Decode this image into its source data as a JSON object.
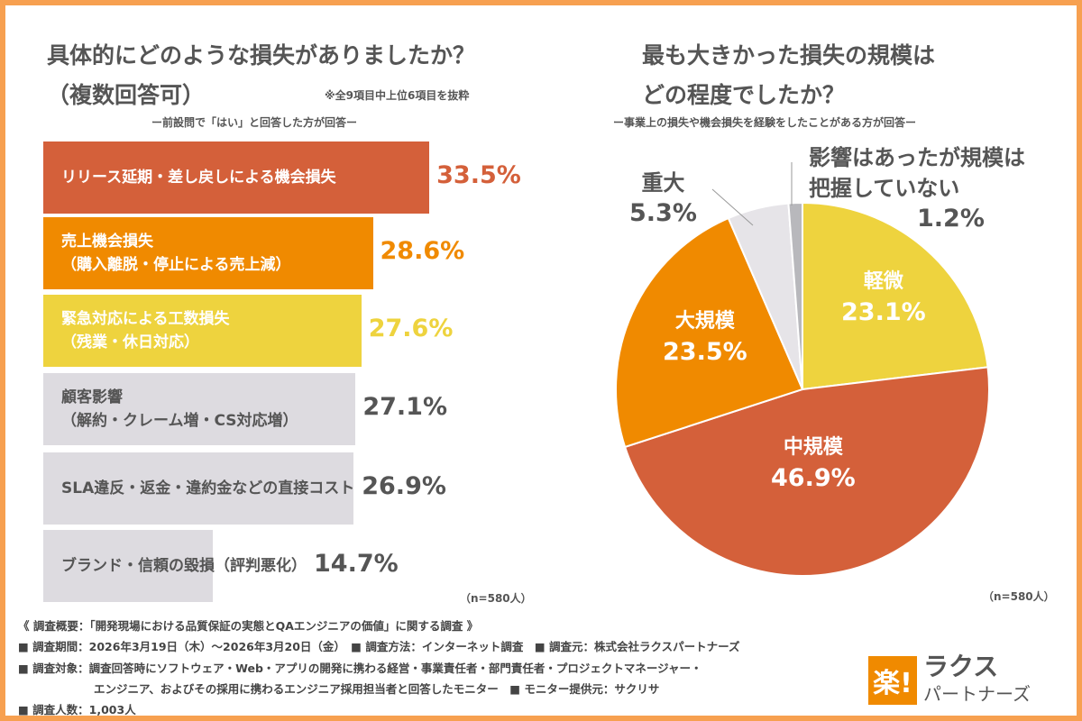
{
  "colors": {
    "red": "#d4603a",
    "orange": "#f08a00",
    "yellow": "#eed33e",
    "gray": "#dddbe0",
    "gray_dark": "#b8b8bc",
    "frame": "#f7a050"
  },
  "chart_data": [
    {
      "type": "bar",
      "orientation": "horizontal",
      "title": "具体的にどのような損失がありましたか？",
      "title2": "（複数回答可）",
      "note": "※全9項目中上位6項目を抜粋",
      "subtitle": "ー前設問で「はい」と回答した方が回答ー",
      "n": "（n=580人）",
      "categories": [
        [
          "リリース延期・差し戻しによる機会損失"
        ],
        [
          "売上機会損失",
          "（購入離脱・停止による売上減）"
        ],
        [
          "緊急対応による工数損失",
          "（残業・休日対応）"
        ],
        [
          "顧客影響",
          "（解約・クレーム増・CS対応増）"
        ],
        [
          "SLA違反・返金・違約金などの直接コスト"
        ],
        [
          "ブランド・信頼の毀損（評判悪化）"
        ]
      ],
      "values": [
        33.5,
        28.6,
        27.6,
        27.1,
        26.9,
        14.7
      ],
      "labels": [
        "33.5%",
        "28.6%",
        "27.6%",
        "27.1%",
        "26.9%",
        "14.7%"
      ],
      "bar_colors": [
        "#d4603a",
        "#f08a00",
        "#eed33e",
        "#dddbe0",
        "#dddbe0",
        "#dddbe0"
      ],
      "label_colors": [
        "#d4603a",
        "#f08a00",
        "#eed33e",
        "#555555",
        "#555555",
        "#555555"
      ],
      "text_colors": [
        "#ffffff",
        "#ffffff",
        "#ffffff",
        "#555555",
        "#555555",
        "#555555"
      ]
    },
    {
      "type": "pie",
      "title": "最も大きかった損失の規模は",
      "title2": "どの程度でしたか？",
      "subtitle": "ー事業上の損失や機会損失を経験をしたことがある方が回答ー",
      "n": "（n=580人）",
      "slices": [
        {
          "label": "軽微",
          "value": 23.1,
          "text": "23.1%",
          "color": "#eed33e"
        },
        {
          "label": "中規模",
          "value": 46.9,
          "text": "46.9%",
          "color": "#d4603a"
        },
        {
          "label": "大規模",
          "value": 23.5,
          "text": "23.5%",
          "color": "#f08a00"
        },
        {
          "label": "重大",
          "value": 5.3,
          "text": "5.3%",
          "color": "#e6e4e8"
        },
        {
          "label": "影響はあったが規模は把握していない",
          "label1": "影響はあったが規模は",
          "label2": "把握していない",
          "value": 1.2,
          "text": "1.2%",
          "color": "#b8b8bc"
        }
      ]
    }
  ],
  "footer": {
    "l1": "《 調査概要：「開発現場における品質保証の実態とQAエンジニアの価値」に関する調査 》",
    "l2": "■ 調査期間：2026年3月19日（木）～2026年3月20日（金）　■ 調査方法：インターネット調査　■ 調査元：株式会社ラクスパートナーズ",
    "l3": "■ 調査対象：調査回答時にソフトウェア・Web・アプリの開発に携わる経営・事業責任者・部門責任者・プロジェクトマネージャー・",
    "l4": "エンジニア、およびその採用に携わるエンジニア採用担当者と回答したモニター　■ モニター提供元：サクリサ",
    "l5": "■ 調査人数：1,003人"
  },
  "logo": {
    "mark": "楽!",
    "name1": "ラクス",
    "name2": "パートナーズ"
  }
}
